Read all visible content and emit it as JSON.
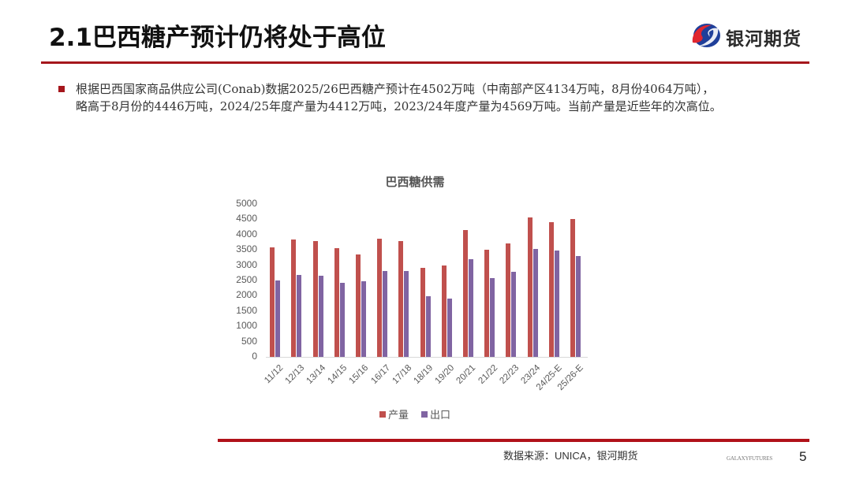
{
  "header": {
    "title": "2.1巴西糖产预计仍将处于高位",
    "logo_text": "银河期货",
    "logo_icon": "galaxy-futures-logo-icon",
    "accent_color": "#a5161c"
  },
  "body": {
    "bullet_line1": "根据巴西国家商品供应公司(Conab)数据2025/26巴西糖产预计在4502万吨（中南部产区4134万吨，8月份4064万吨），",
    "bullet_line2": "略高于8月份的4446万吨，2024/25年度产量为4412万吨，2023/24年度产量为4569万吨。当前产量是近些年的次高位。"
  },
  "chart_data": {
    "type": "bar",
    "title": "巴西糖供需",
    "xlabel": "",
    "ylabel": "",
    "ylim": [
      0,
      5000
    ],
    "yticks": [
      0,
      500,
      1000,
      1500,
      2000,
      2500,
      3000,
      3500,
      4000,
      4500,
      5000
    ],
    "grid": false,
    "legend_position": "bottom",
    "categories": [
      "11/12",
      "12/13",
      "13/14",
      "14/15",
      "15/16",
      "16/17",
      "17/18",
      "18/19",
      "19/20",
      "20/21",
      "21/22",
      "22/23",
      "23/24",
      "24/25-E",
      "25/26-E"
    ],
    "series": [
      {
        "name": "产量",
        "color": "#c0504d",
        "values": [
          3590,
          3840,
          3780,
          3560,
          3340,
          3860,
          3780,
          2910,
          2990,
          4140,
          3500,
          3700,
          4569,
          4412,
          4502
        ]
      },
      {
        "name": "出口",
        "color": "#8064a2",
        "values": [
          2500,
          2690,
          2660,
          2420,
          2470,
          2820,
          2800,
          1980,
          1900,
          3200,
          2580,
          2780,
          3540,
          3480,
          3290
        ]
      }
    ]
  },
  "footer": {
    "source": "数据来源：UNICA，银河期货",
    "brand": "GALAXYFUTURES",
    "page_number": "5"
  }
}
